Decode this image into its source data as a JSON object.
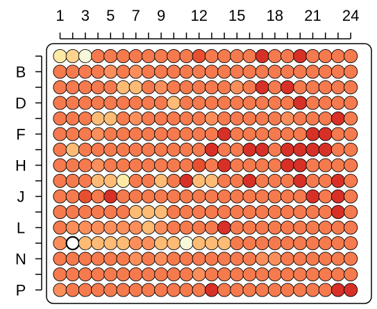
{
  "chart_data": {
    "type": "heatmap",
    "title": "",
    "xlabel": "",
    "ylabel": "",
    "columns": [
      1,
      2,
      3,
      4,
      5,
      6,
      7,
      8,
      9,
      10,
      11,
      12,
      13,
      14,
      15,
      16,
      17,
      18,
      19,
      20,
      21,
      22,
      23,
      24
    ],
    "rows": [
      "A",
      "B",
      "C",
      "D",
      "E",
      "F",
      "G",
      "H",
      "I",
      "J",
      "K",
      "L",
      "M",
      "N",
      "O",
      "P"
    ],
    "x_tick_labels": [
      {
        "col": 1,
        "text": "1"
      },
      {
        "col": 3,
        "text": "3"
      },
      {
        "col": 5,
        "text": "5"
      },
      {
        "col": 7,
        "text": "7"
      },
      {
        "col": 9,
        "text": "9"
      },
      {
        "col": 12,
        "text": "12"
      },
      {
        "col": 15,
        "text": "15"
      },
      {
        "col": 18,
        "text": "18"
      },
      {
        "col": 21,
        "text": "21"
      },
      {
        "col": 24,
        "text": "24"
      }
    ],
    "y_tick_labels": [
      {
        "row": "B",
        "text": "B"
      },
      {
        "row": "D",
        "text": "D"
      },
      {
        "row": "F",
        "text": "F"
      },
      {
        "row": "H",
        "text": "H"
      },
      {
        "row": "J",
        "text": "J"
      },
      {
        "row": "L",
        "text": "L"
      },
      {
        "row": "N",
        "text": "N"
      },
      {
        "row": "P",
        "text": "P"
      }
    ],
    "color_scale": {
      "0": "#ffffff",
      "1": "#f7f7d9",
      "2": "#fde9a6",
      "3": "#fed38b",
      "4": "#fdbb76",
      "5": "#fa8f5c",
      "6": "#f57a4e",
      "7": "#e6502f",
      "8": "#d73027"
    },
    "grid": [
      "231666666667666686686666",
      "666656566666666666666666",
      "666664465666665686866666",
      "666666666466666666686666",
      "666446566666566666566686",
      "666566666666686666668866",
      "646666666666866886888866",
      "666566666667686666886666",
      "666442664684466866686686",
      "667686666666666666668686",
      "666666444666666666666686",
      "655555545666686666666666",
      "504444554414446666666666",
      "666666565666666655666666",
      "666666666665666666666666",
      "566666666666866666666688"
    ]
  }
}
